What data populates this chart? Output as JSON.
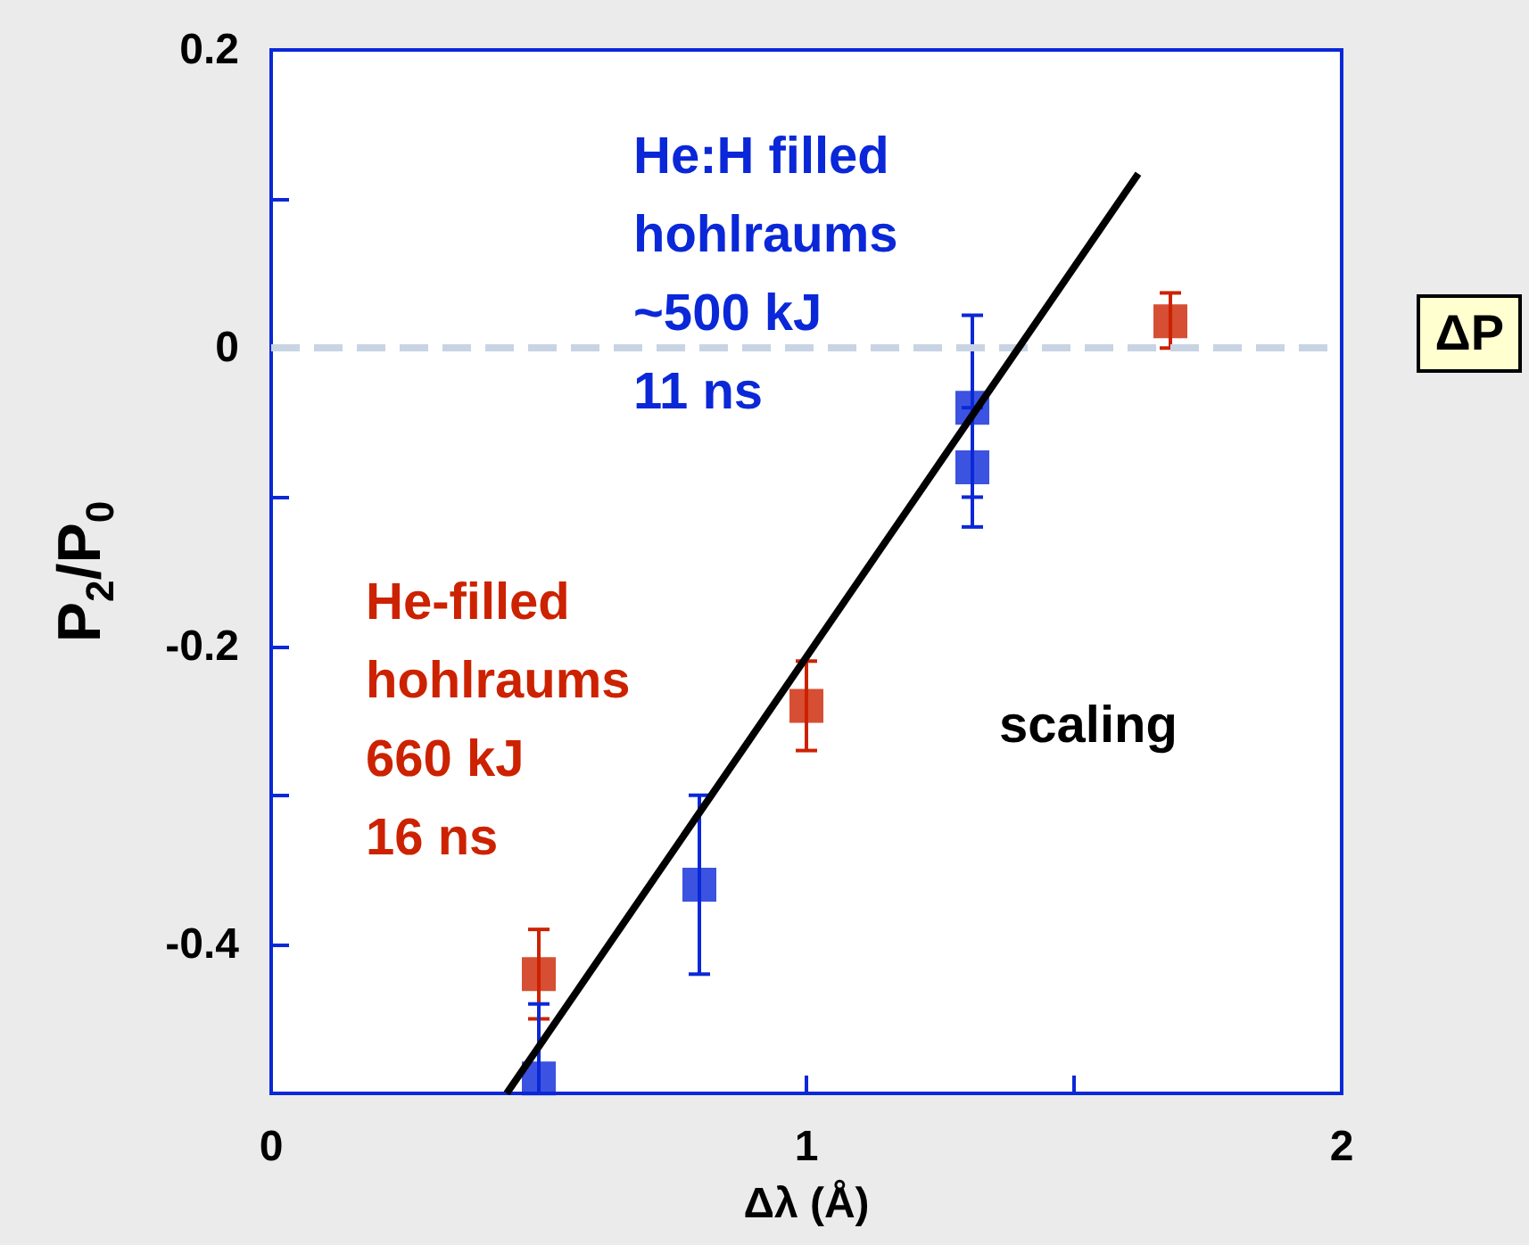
{
  "chart_data": {
    "type": "scatter",
    "xlabel": "Δλ (Å)",
    "ylabel": "P$_{2}$/P$_{0}$",
    "xlim": [
      0,
      2
    ],
    "xticks": [
      0,
      {
        "value": 0.5,
        "label": null
      },
      1,
      {
        "value": 1.5,
        "label": null
      },
      2
    ],
    "ylim": [
      -0.5,
      0.2
    ],
    "yticks": [
      {
        "value": -0.5,
        "label": null
      },
      -0.4,
      {
        "value": -0.3,
        "label": null
      },
      -0.2,
      {
        "value": -0.1,
        "label": null
      },
      0,
      {
        "value": 0.1,
        "label": null
      },
      0.2
    ],
    "marker": "square",
    "legend": false,
    "grid": false,
    "series": [
      {
        "name": "He-filled\nhohlraums\n660 kJ\n16 ns",
        "color": "#cc2200",
        "x": [
          0.5,
          1.0,
          1.68
        ],
        "values": [
          -0.42,
          -0.24,
          0.018
        ],
        "errors": [
          [
            -0.45,
            -0.39
          ],
          [
            -0.27,
            -0.21
          ],
          [
            0.0,
            0.037
          ]
        ]
      },
      {
        "name": "He:H filled\nhohlraums\n~500 kJ\n11 ns",
        "color": "#0a28d8",
        "x": [
          0.5,
          0.8,
          1.31,
          1.31
        ],
        "values": [
          -0.49,
          -0.36,
          -0.04,
          -0.08
        ],
        "errors": [
          [
            -0.5,
            -0.44
          ],
          [
            -0.42,
            -0.3
          ],
          [
            -0.1,
            0.022
          ],
          [
            -0.12,
            -0.04
          ]
        ]
      },
      {
        "name": "scaling",
        "type": "line",
        "color": "#000000",
        "marker": "none",
        "x": [
          0.44,
          1.62
        ],
        "values": [
          -0.5,
          0.117
        ]
      }
    ],
    "ref_lines": [
      {
        "axis": "y",
        "value": 0,
        "color": "#c8d4e3",
        "line_style": "dashed"
      }
    ],
    "annotations": [
      "ΔP"
    ]
  }
}
